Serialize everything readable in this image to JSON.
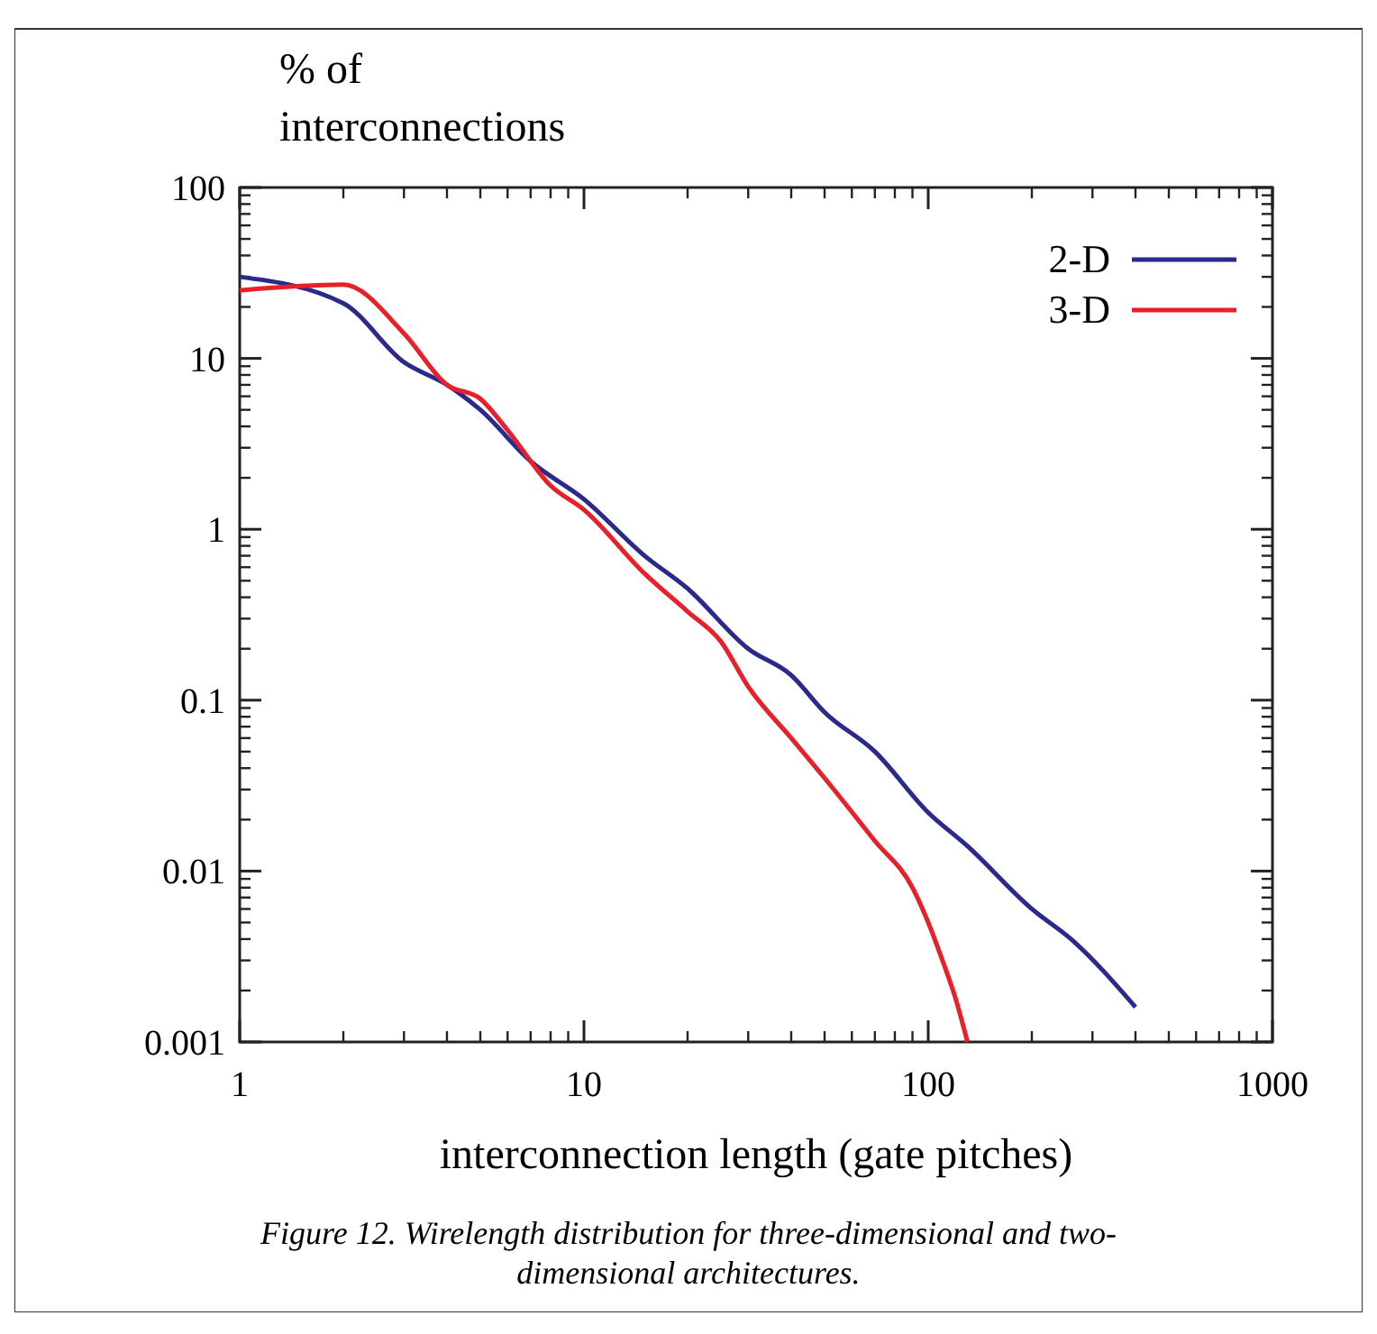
{
  "chart_data": {
    "type": "line",
    "xlabel": "interconnection length (gate pitches)",
    "ylabel": "% of interconnections",
    "log": "xy",
    "legend": "top right",
    "grid": false,
    "xlim": [
      1,
      1000
    ],
    "xticks": [
      1,
      10,
      100,
      1000
    ],
    "ylim": [
      0.001,
      100
    ],
    "yticks": [
      0.001,
      0.01,
      0.1,
      1,
      10,
      100
    ],
    "annotations": [
      "Figure 12. Wirelength distribution for three-dimensional and two-dimensional architectures."
    ],
    "series": [
      {
        "name": "2-D",
        "color": "#2a2a8c",
        "x": [
          1,
          2,
          3,
          4,
          5,
          7,
          10,
          15,
          20,
          30,
          40,
          50,
          70,
          100,
          130,
          200,
          260,
          400
        ],
        "values": [
          30,
          21,
          9.5,
          7,
          5,
          2.5,
          1.5,
          0.7,
          0.45,
          0.2,
          0.14,
          0.085,
          0.05,
          0.022,
          0.014,
          0.006,
          0.004,
          0.0016
        ]
      },
      {
        "name": "3-D",
        "color": "#e8202a",
        "x": [
          1,
          2,
          3,
          4,
          5,
          6,
          8,
          10,
          15,
          20,
          25,
          30,
          40,
          50,
          70,
          90,
          100,
          110,
          120,
          130
        ],
        "values": [
          25,
          27,
          14,
          7,
          5.8,
          3.8,
          1.8,
          1.3,
          0.55,
          0.33,
          0.22,
          0.12,
          0.06,
          0.035,
          0.015,
          0.008,
          0.005,
          0.003,
          0.0018,
          0.001
        ]
      }
    ]
  }
}
